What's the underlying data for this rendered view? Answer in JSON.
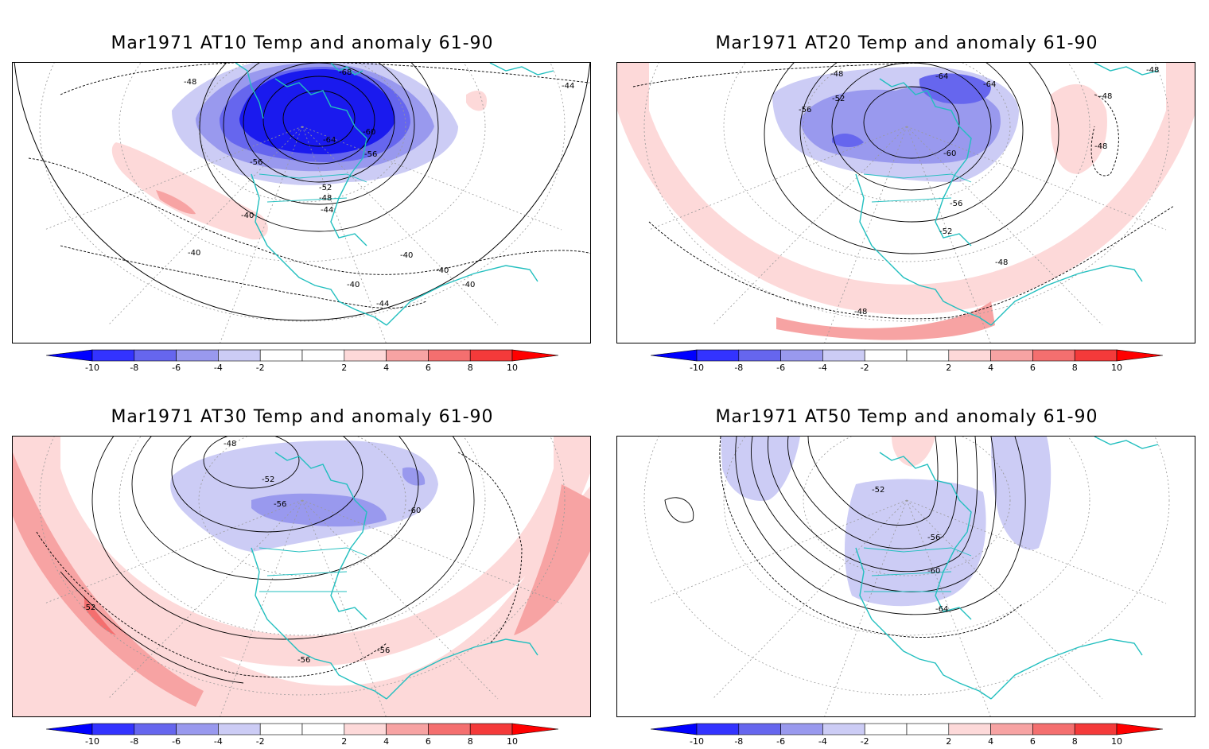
{
  "colorbar": {
    "labels": [
      "-10",
      "-8",
      "-6",
      "-4",
      "-2",
      "2",
      "4",
      "6",
      "8",
      "10"
    ],
    "colors": {
      "neg_arrow": "#0000ff",
      "neg10": "#3333ff",
      "neg8": "#6666ee",
      "neg6": "#9999ee",
      "neg4": "#ccccf5",
      "neutral": "#ffffff",
      "pos2": "#fdd9d9",
      "pos4": "#f7a3a3",
      "pos6": "#f46f6f",
      "pos8": "#f43a3a",
      "pos_arrow": "#ff0000"
    }
  },
  "colors": {
    "coast": "#22bfbf",
    "contour": "#000000",
    "grid": "#999999"
  },
  "panels": [
    {
      "title": "Mar1971 AT10 Temp and anomaly 61-90",
      "contour_labels": [
        "-68",
        "-48",
        "-44",
        "-60",
        "-64",
        "-56",
        "-56",
        "-52",
        "-48",
        "-44",
        "-40",
        "-40",
        "-40",
        "-40",
        "-40",
        "-40",
        "-44"
      ]
    },
    {
      "title": "Mar1971 AT20 Temp and anomaly 61-90",
      "contour_labels": [
        "-48",
        "-64",
        "-64",
        "-52",
        "-56",
        "-48",
        "-48",
        "-60",
        "-48",
        "-56",
        "-52",
        "-48",
        "-48"
      ]
    },
    {
      "title": "Mar1971 AT30 Temp and anomaly 61-90",
      "contour_labels": [
        "-48",
        "-52",
        "-56",
        "-60",
        "-52",
        "-56",
        "-56"
      ]
    },
    {
      "title": "Mar1971 AT50 Temp and anomaly 61-90",
      "contour_labels": [
        "-52",
        "-56",
        "-60",
        "-64"
      ]
    }
  ]
}
